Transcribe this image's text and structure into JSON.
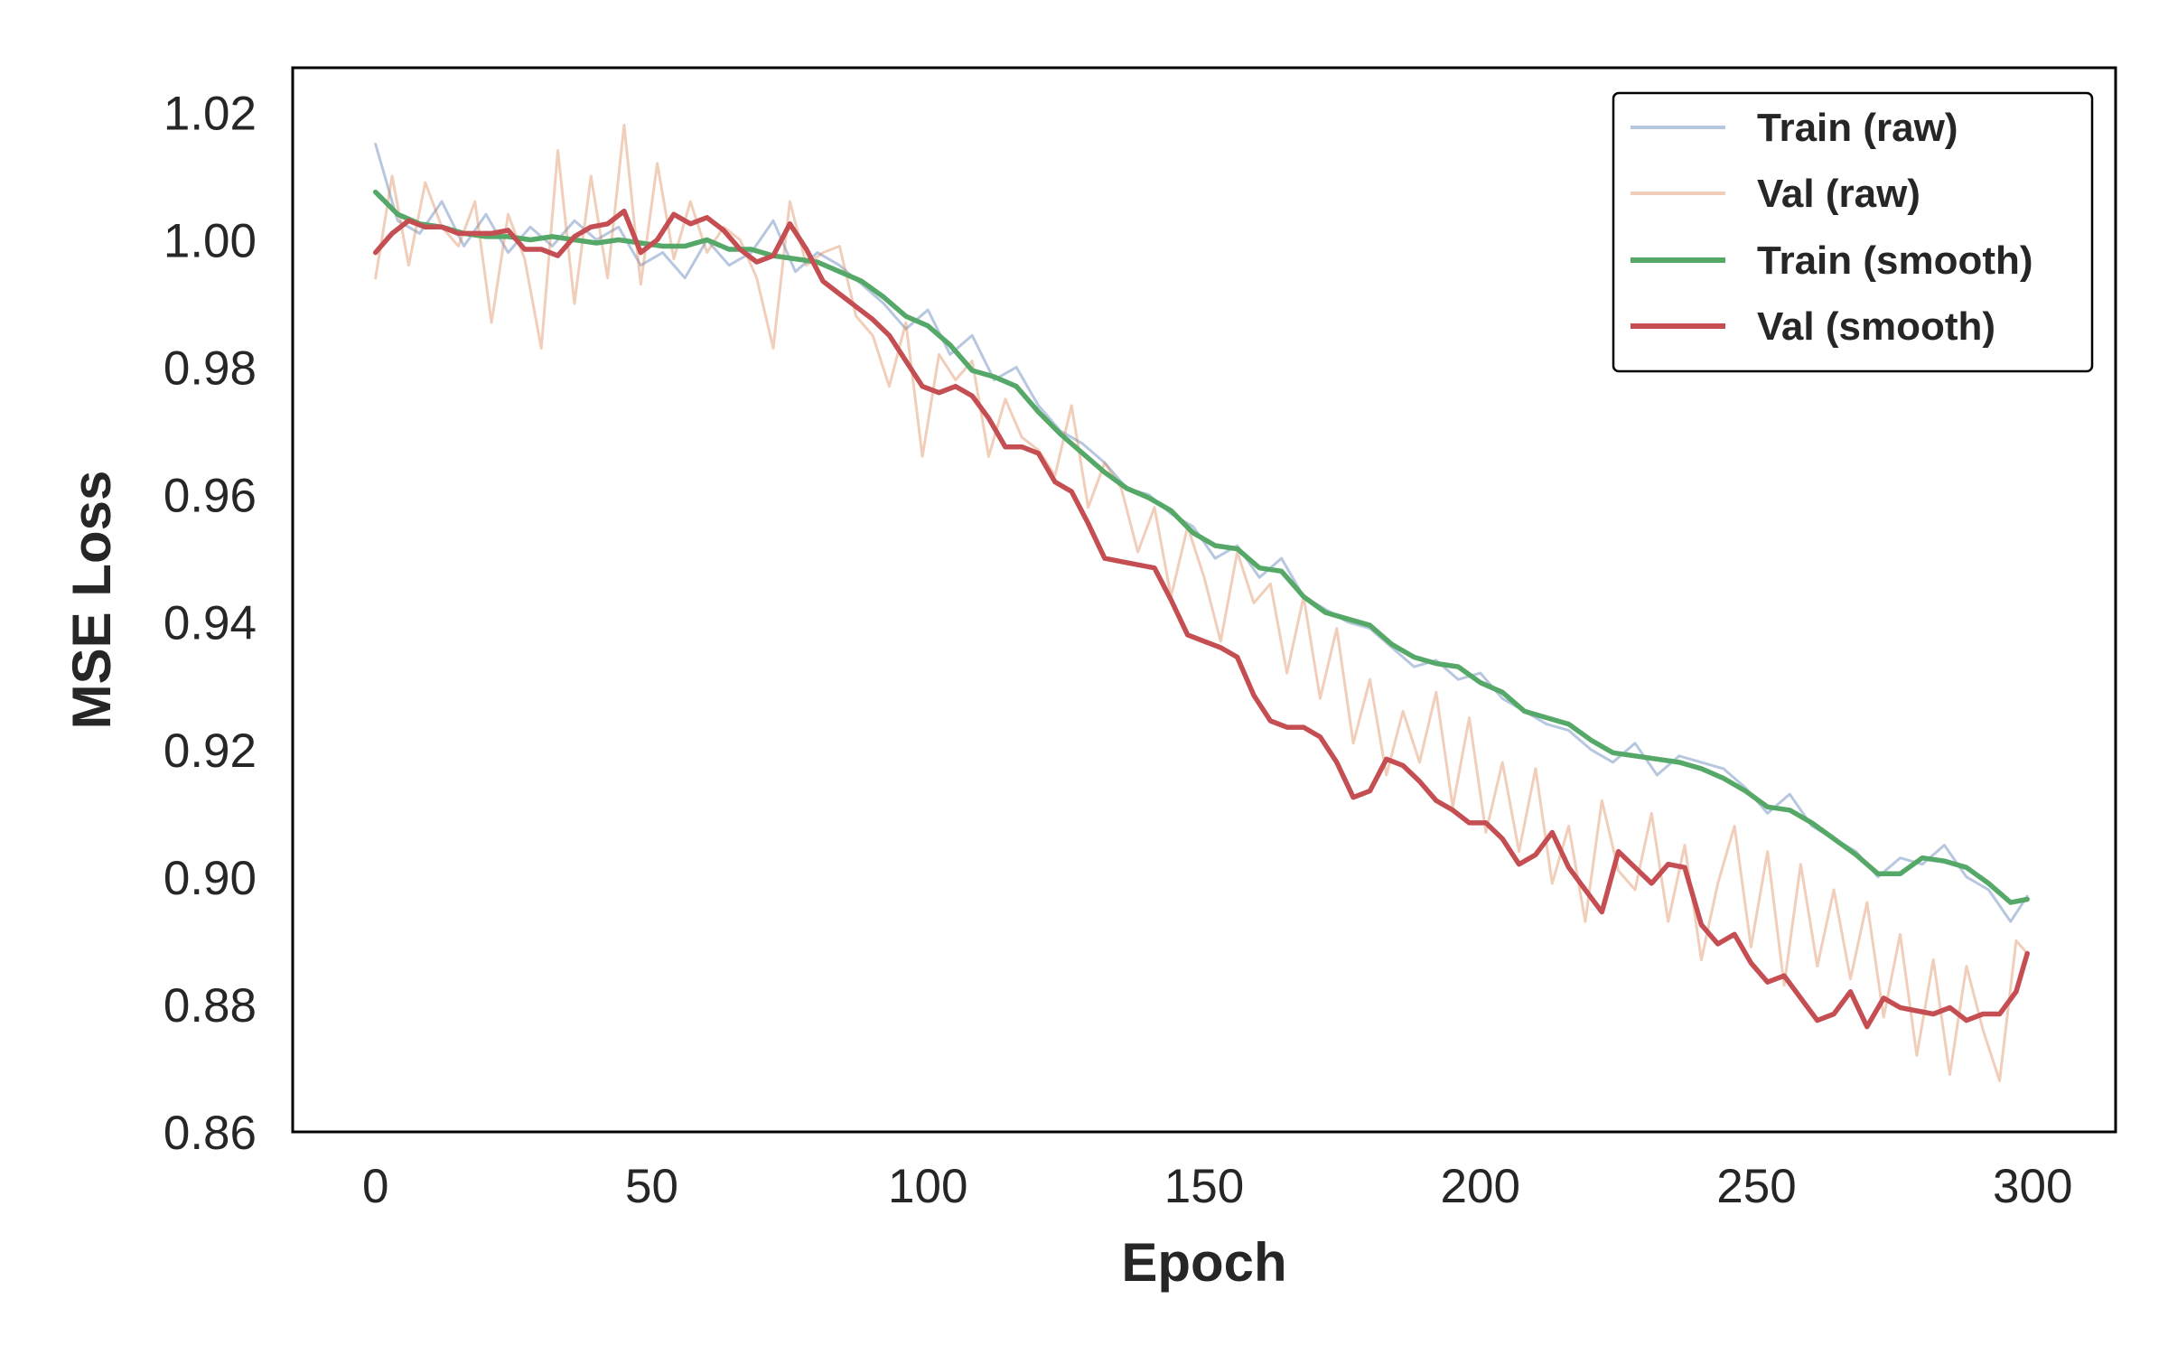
{
  "chart_data": {
    "type": "line",
    "title": "",
    "xlabel": "Epoch",
    "ylabel": "MSE Loss",
    "xlim": [
      -15,
      315
    ],
    "ylim": [
      0.86,
      1.027
    ],
    "x_ticks": [
      0,
      50,
      100,
      150,
      200,
      250,
      300
    ],
    "x_tick_labels": [
      "0",
      "50",
      "100",
      "150",
      "200",
      "250",
      "300"
    ],
    "y_ticks": [
      0.86,
      0.88,
      0.9,
      0.92,
      0.94,
      0.96,
      0.98,
      1.0,
      1.02
    ],
    "y_tick_labels": [
      "0.86",
      "0.88",
      "0.90",
      "0.92",
      "0.94",
      "0.96",
      "0.98",
      "1.00",
      "1.02"
    ],
    "grid": false,
    "legend_position": "top-right",
    "series": [
      {
        "name": "Train (raw)",
        "color": "#4c72b0",
        "opacity": 0.4,
        "x": [
          0,
          4,
          8,
          12,
          16,
          20,
          24,
          28,
          32,
          36,
          40,
          44,
          48,
          52,
          56,
          60,
          64,
          68,
          72,
          76,
          80,
          84,
          88,
          92,
          96,
          100,
          104,
          108,
          112,
          116,
          120,
          124,
          128,
          132,
          136,
          140,
          144,
          148,
          152,
          156,
          160,
          164,
          168,
          172,
          176,
          180,
          184,
          188,
          192,
          196,
          200,
          204,
          208,
          212,
          216,
          220,
          224,
          228,
          232,
          236,
          240,
          244,
          248,
          252,
          256,
          260,
          264,
          268,
          272,
          276,
          280,
          284,
          288,
          292,
          296,
          299
        ],
        "y": [
          1.015,
          1.003,
          1.001,
          1.006,
          0.999,
          1.004,
          0.998,
          1.002,
          0.999,
          1.003,
          1.0,
          1.002,
          0.996,
          0.998,
          0.994,
          1.0,
          0.996,
          0.998,
          1.003,
          0.995,
          0.998,
          0.996,
          0.993,
          0.99,
          0.986,
          0.989,
          0.982,
          0.985,
          0.978,
          0.98,
          0.974,
          0.97,
          0.968,
          0.965,
          0.961,
          0.96,
          0.957,
          0.955,
          0.95,
          0.952,
          0.947,
          0.95,
          0.944,
          0.942,
          0.94,
          0.939,
          0.936,
          0.933,
          0.934,
          0.931,
          0.932,
          0.928,
          0.926,
          0.924,
          0.923,
          0.92,
          0.918,
          0.921,
          0.916,
          0.919,
          0.918,
          0.917,
          0.914,
          0.91,
          0.913,
          0.908,
          0.906,
          0.904,
          0.9,
          0.903,
          0.902,
          0.905,
          0.9,
          0.898,
          0.893,
          0.897
        ]
      },
      {
        "name": "Val (raw)",
        "color": "#dd8452",
        "opacity": 0.4,
        "x": [
          0,
          3,
          6,
          9,
          12,
          15,
          18,
          21,
          24,
          27,
          30,
          33,
          36,
          39,
          42,
          45,
          48,
          51,
          54,
          57,
          60,
          63,
          66,
          69,
          72,
          75,
          78,
          81,
          84,
          87,
          90,
          93,
          96,
          99,
          102,
          105,
          108,
          111,
          114,
          117,
          120,
          123,
          126,
          129,
          132,
          135,
          138,
          141,
          144,
          147,
          150,
          153,
          156,
          159,
          162,
          165,
          168,
          171,
          174,
          177,
          180,
          183,
          186,
          189,
          192,
          195,
          198,
          201,
          204,
          207,
          210,
          213,
          216,
          219,
          222,
          225,
          228,
          231,
          234,
          237,
          240,
          243,
          246,
          249,
          252,
          255,
          258,
          261,
          264,
          267,
          270,
          273,
          276,
          279,
          282,
          285,
          288,
          291,
          294,
          297,
          299
        ],
        "y": [
          0.994,
          1.01,
          0.996,
          1.009,
          1.002,
          0.999,
          1.006,
          0.987,
          1.004,
          0.997,
          0.983,
          1.014,
          0.99,
          1.01,
          0.994,
          1.018,
          0.993,
          1.012,
          0.997,
          1.006,
          0.998,
          1.002,
          1.0,
          0.994,
          0.983,
          1.006,
          0.996,
          0.998,
          0.999,
          0.988,
          0.985,
          0.977,
          0.987,
          0.966,
          0.982,
          0.978,
          0.981,
          0.966,
          0.975,
          0.969,
          0.967,
          0.963,
          0.974,
          0.958,
          0.965,
          0.961,
          0.951,
          0.958,
          0.944,
          0.955,
          0.947,
          0.937,
          0.951,
          0.943,
          0.946,
          0.932,
          0.944,
          0.928,
          0.939,
          0.921,
          0.931,
          0.916,
          0.926,
          0.918,
          0.929,
          0.911,
          0.925,
          0.907,
          0.918,
          0.904,
          0.917,
          0.899,
          0.908,
          0.893,
          0.912,
          0.901,
          0.898,
          0.91,
          0.893,
          0.905,
          0.887,
          0.899,
          0.908,
          0.889,
          0.904,
          0.883,
          0.902,
          0.886,
          0.898,
          0.884,
          0.896,
          0.878,
          0.891,
          0.872,
          0.887,
          0.869,
          0.886,
          0.876,
          0.868,
          0.89,
          0.888
        ]
      },
      {
        "name": "Train (smooth)",
        "color": "#55a868",
        "opacity": 1,
        "x": [
          0,
          4,
          8,
          12,
          16,
          20,
          24,
          28,
          32,
          36,
          40,
          44,
          48,
          52,
          56,
          60,
          64,
          68,
          72,
          76,
          80,
          84,
          88,
          92,
          96,
          100,
          104,
          108,
          112,
          116,
          120,
          124,
          128,
          132,
          136,
          140,
          144,
          148,
          152,
          156,
          160,
          164,
          168,
          172,
          176,
          180,
          184,
          188,
          192,
          196,
          200,
          204,
          208,
          212,
          216,
          220,
          224,
          228,
          232,
          236,
          240,
          244,
          248,
          252,
          256,
          260,
          264,
          268,
          272,
          276,
          280,
          284,
          288,
          292,
          296,
          299
        ],
        "y": [
          1.0075,
          1.004,
          1.0025,
          1.002,
          1.001,
          1.0005,
          1.0005,
          1.0,
          1.0005,
          1.0,
          0.9995,
          1.0,
          0.9995,
          0.999,
          0.999,
          1.0,
          0.9985,
          0.9985,
          0.9975,
          0.997,
          0.9965,
          0.995,
          0.9935,
          0.991,
          0.988,
          0.9865,
          0.9835,
          0.9795,
          0.9785,
          0.977,
          0.973,
          0.9695,
          0.9665,
          0.9635,
          0.961,
          0.9595,
          0.9575,
          0.954,
          0.952,
          0.9515,
          0.9485,
          0.948,
          0.944,
          0.9415,
          0.9405,
          0.9395,
          0.9365,
          0.9345,
          0.9335,
          0.933,
          0.9305,
          0.929,
          0.926,
          0.925,
          0.924,
          0.9215,
          0.9195,
          0.919,
          0.9185,
          0.918,
          0.917,
          0.9155,
          0.9135,
          0.911,
          0.9105,
          0.9085,
          0.906,
          0.9035,
          0.9005,
          0.9005,
          0.903,
          0.9025,
          0.9015,
          0.899,
          0.896,
          0.8965
        ]
      },
      {
        "name": "Val (smooth)",
        "color": "#c44e52",
        "opacity": 1,
        "x": [
          0,
          3,
          6,
          9,
          12,
          15,
          18,
          21,
          24,
          27,
          30,
          33,
          36,
          39,
          42,
          45,
          48,
          51,
          54,
          57,
          60,
          63,
          66,
          69,
          72,
          75,
          78,
          81,
          84,
          87,
          90,
          93,
          96,
          99,
          102,
          105,
          108,
          111,
          114,
          117,
          120,
          123,
          126,
          129,
          132,
          135,
          138,
          141,
          144,
          147,
          150,
          153,
          156,
          159,
          162,
          165,
          168,
          171,
          174,
          177,
          180,
          183,
          186,
          189,
          192,
          195,
          198,
          201,
          204,
          207,
          210,
          213,
          216,
          219,
          222,
          225,
          228,
          231,
          234,
          237,
          240,
          243,
          246,
          249,
          252,
          255,
          258,
          261,
          264,
          267,
          270,
          273,
          276,
          279,
          282,
          285,
          288,
          291,
          294,
          297,
          299
        ],
        "y": [
          0.998,
          1.001,
          1.003,
          1.002,
          1.002,
          1.001,
          1.001,
          1.001,
          1.0015,
          0.9985,
          0.9985,
          0.9975,
          1.0005,
          1.002,
          1.0025,
          1.0045,
          0.998,
          1.0,
          1.004,
          1.0025,
          1.0035,
          1.0015,
          0.9985,
          0.9965,
          0.9975,
          1.0025,
          0.9985,
          0.9935,
          0.9915,
          0.9895,
          0.9875,
          0.985,
          0.981,
          0.977,
          0.976,
          0.977,
          0.9755,
          0.972,
          0.9675,
          0.9675,
          0.9665,
          0.962,
          0.9605,
          0.9555,
          0.95,
          0.9495,
          0.949,
          0.9485,
          0.9435,
          0.938,
          0.937,
          0.936,
          0.9345,
          0.9285,
          0.9245,
          0.9235,
          0.9235,
          0.922,
          0.918,
          0.9125,
          0.9135,
          0.9185,
          0.9175,
          0.915,
          0.912,
          0.9105,
          0.9085,
          0.9085,
          0.906,
          0.902,
          0.9035,
          0.907,
          0.9015,
          0.898,
          0.8945,
          0.904,
          0.9015,
          0.899,
          0.902,
          0.9015,
          0.8925,
          0.8895,
          0.891,
          0.8865,
          0.8835,
          0.8845,
          0.881,
          0.8775,
          0.8785,
          0.882,
          0.8765,
          0.881,
          0.8795,
          0.879,
          0.8785,
          0.8795,
          0.8775,
          0.8785,
          0.8785,
          0.882,
          0.888
        ]
      }
    ]
  }
}
